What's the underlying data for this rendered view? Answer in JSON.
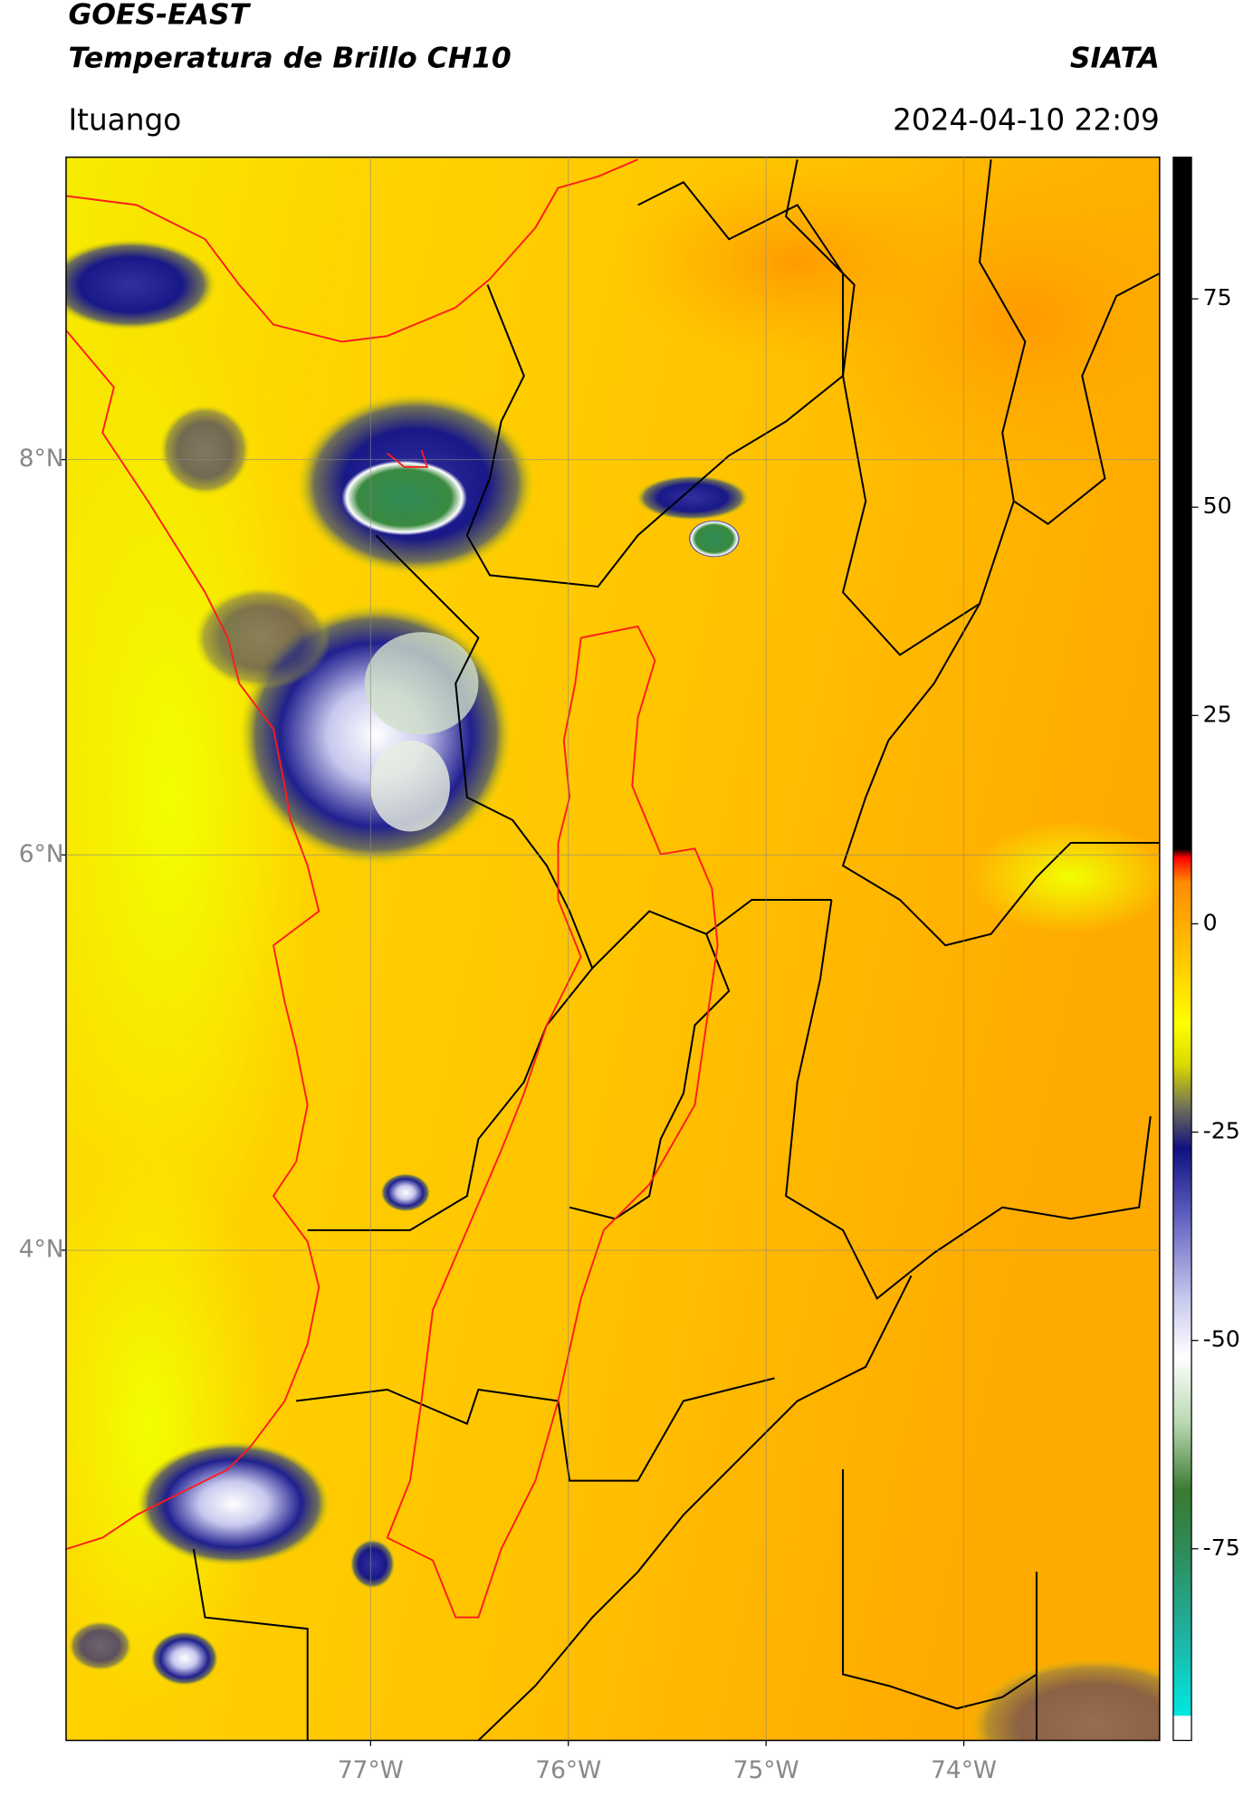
{
  "header": {
    "title": "GOES-EAST",
    "subtitle": "Temperatura de Brillo CH10",
    "source": "SIATA",
    "location": "Ituango",
    "datetime": "2024-04-10 22:09"
  },
  "map": {
    "xlim": [
      -78.54,
      -73.01
    ],
    "ylim": [
      1.52,
      9.53
    ],
    "xticks": [
      {
        "value": -77,
        "label": "77°W"
      },
      {
        "value": -76,
        "label": "76°W"
      },
      {
        "value": -75,
        "label": "75°W"
      },
      {
        "value": -74,
        "label": "74°W"
      }
    ],
    "yticks": [
      {
        "value": 8,
        "label": "8°N"
      },
      {
        "value": 6,
        "label": "6°N"
      },
      {
        "value": 4,
        "label": "4°N"
      }
    ],
    "grid": true
  },
  "colorbar": {
    "lim": [
      -98,
      92
    ],
    "ticks": [
      75,
      50,
      25,
      0,
      -25,
      -50,
      -75
    ],
    "stops": [
      {
        "value": -98,
        "color": "#ffffff"
      },
      {
        "value": -95,
        "color": "#ffffff"
      },
      {
        "value": -95,
        "color": "#00e8e0"
      },
      {
        "value": -85,
        "color": "#20b0a0"
      },
      {
        "value": -75,
        "color": "#2e8b57"
      },
      {
        "value": -68,
        "color": "#3a7a30"
      },
      {
        "value": -60,
        "color": "#b8d8b0"
      },
      {
        "value": -52,
        "color": "#ffffff"
      },
      {
        "value": -45,
        "color": "#c8c8ee"
      },
      {
        "value": -35,
        "color": "#6060c0"
      },
      {
        "value": -27,
        "color": "#101080"
      },
      {
        "value": -22,
        "color": "#707058"
      },
      {
        "value": -17,
        "color": "#d8d800"
      },
      {
        "value": -12,
        "color": "#ffff00"
      },
      {
        "value": -5,
        "color": "#ffcc00"
      },
      {
        "value": 5,
        "color": "#ff8c00"
      },
      {
        "value": 8,
        "color": "#ff0000"
      },
      {
        "value": 9,
        "color": "#000000"
      },
      {
        "value": 92,
        "color": "#000000"
      }
    ]
  }
}
